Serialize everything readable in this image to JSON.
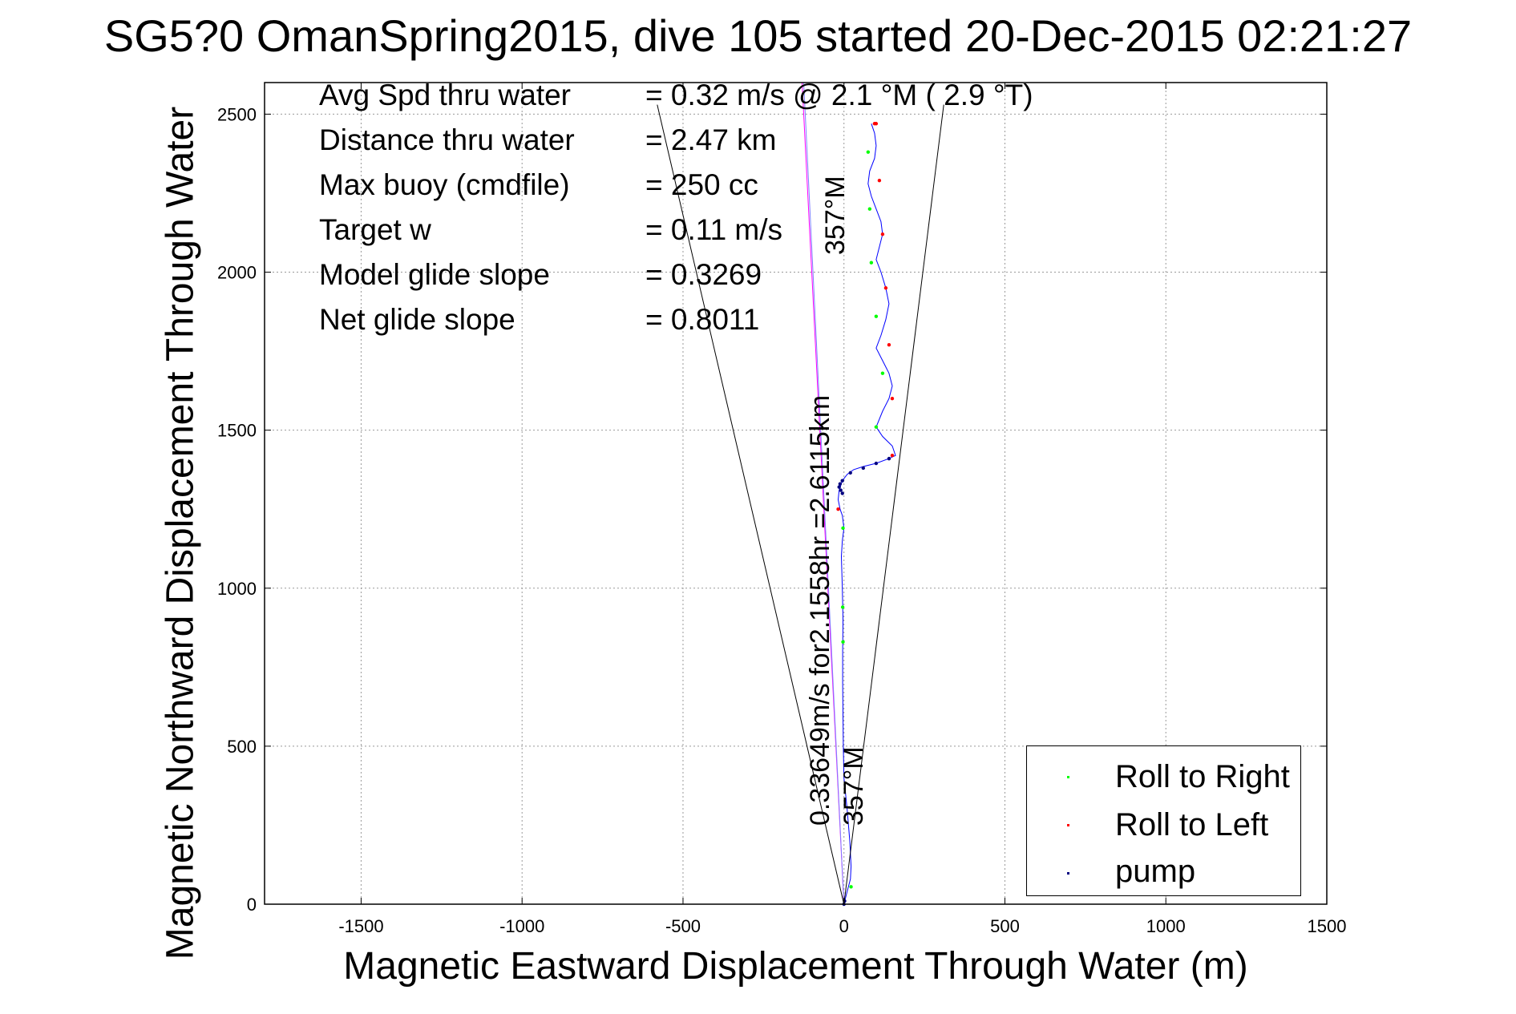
{
  "chart_data": {
    "type": "line",
    "title": "SG5?0 OmanSpring2015, dive 105 started 20-Dec-2015 02:21:27",
    "xlabel": "Magnetic Eastward Displacement Through Water (m)",
    "ylabel": "Magnetic Northward Displacement Through Water",
    "xlim": [
      -1800,
      1500
    ],
    "ylim": [
      0,
      2600
    ],
    "xticks": [
      -1500,
      -1000,
      -500,
      0,
      500,
      1000,
      1500
    ],
    "yticks": [
      0,
      500,
      1000,
      1500,
      2000,
      2500
    ],
    "grid": true,
    "legend_position": "bottom-right",
    "annotations": [
      {
        "label": "Avg Spd thru water",
        "value": "=  0.32 m/s @   2.1 °M (  2.9 °T)"
      },
      {
        "label": "Distance thru water",
        "value": "=  2.47 km"
      },
      {
        "label": "Max buoy (cmdfile)",
        "value": "= 250 cc"
      },
      {
        "label": "Target w",
        "value": "= 0.11 m/s"
      },
      {
        "label": "Model glide slope",
        "value": "= 0.3269"
      },
      {
        "label": "Net glide slope",
        "value": "= 0.8011"
      }
    ],
    "rotated_labels": {
      "heading_top": "357°M",
      "heading_bottom": "357°M",
      "current": "0.33649m/s for2.1558hr =2.6115km"
    },
    "series": [
      {
        "name": "track",
        "color": "#0000ff",
        "x": [
          0,
          5,
          10,
          15,
          20,
          22,
          18,
          10,
          0,
          -2,
          -3,
          -4,
          -4,
          -3,
          -5,
          -8,
          -5,
          0,
          -5,
          -12,
          -18,
          -15,
          -5,
          10,
          30,
          60,
          100,
          140,
          160,
          150,
          120,
          100,
          120,
          140,
          150,
          140,
          120,
          100,
          115,
          130,
          140,
          130,
          115,
          100,
          110,
          120,
          115,
          100,
          85,
          75,
          80,
          95,
          100,
          95,
          85
        ],
        "y": [
          0,
          20,
          40,
          60,
          80,
          120,
          200,
          300,
          400,
          500,
          600,
          700,
          800,
          900,
          1000,
          1100,
          1150,
          1190,
          1230,
          1250,
          1280,
          1310,
          1340,
          1360,
          1375,
          1385,
          1395,
          1410,
          1420,
          1450,
          1480,
          1510,
          1560,
          1600,
          1640,
          1680,
          1720,
          1760,
          1800,
          1850,
          1900,
          1950,
          2000,
          2040,
          2080,
          2120,
          2160,
          2200,
          2240,
          2280,
          2320,
          2360,
          2400,
          2440,
          2470
        ]
      },
      {
        "name": "Roll to Right",
        "color": "#00ff00",
        "marker": ".",
        "x": [
          22,
          -3,
          -4,
          -3,
          100,
          120,
          100,
          85,
          80,
          75
        ],
        "y": [
          55,
          830,
          940,
          1190,
          1510,
          1680,
          1860,
          2030,
          2200,
          2380
        ]
      },
      {
        "name": "Roll to Left",
        "color": "#ff0000",
        "marker": ".",
        "x": [
          -18,
          150,
          150,
          140,
          130,
          120,
          110,
          100,
          95
        ],
        "y": [
          1250,
          1420,
          1600,
          1770,
          1950,
          2120,
          2290,
          2470,
          2470
        ]
      },
      {
        "name": "pump",
        "color": "#000080",
        "marker": ".",
        "x": [
          0,
          2,
          -5,
          -10,
          -15,
          -12,
          -5,
          20,
          60,
          100,
          140
        ],
        "y": [
          0,
          10,
          1300,
          1310,
          1320,
          1330,
          1340,
          1365,
          1380,
          1395,
          1410
        ]
      },
      {
        "name": "heading line",
        "color": "#ff00ff",
        "x": [
          0,
          -130
        ],
        "y": [
          0,
          2600
        ]
      },
      {
        "name": "current line",
        "color": "#8080ff",
        "x": [
          0,
          -125
        ],
        "y": [
          0,
          2600
        ]
      },
      {
        "name": "cone left",
        "color": "#000000",
        "x": [
          0,
          -580
        ],
        "y": [
          0,
          2530
        ]
      },
      {
        "name": "cone right",
        "color": "#000000",
        "x": [
          0,
          310
        ],
        "y": [
          0,
          2530
        ]
      }
    ]
  },
  "legend": {
    "items": [
      {
        "label": "Roll to Right",
        "color": "#00ff00"
      },
      {
        "label": "Roll to Left",
        "color": "#ff0000"
      },
      {
        "label": "pump",
        "color": "#000080"
      }
    ]
  }
}
